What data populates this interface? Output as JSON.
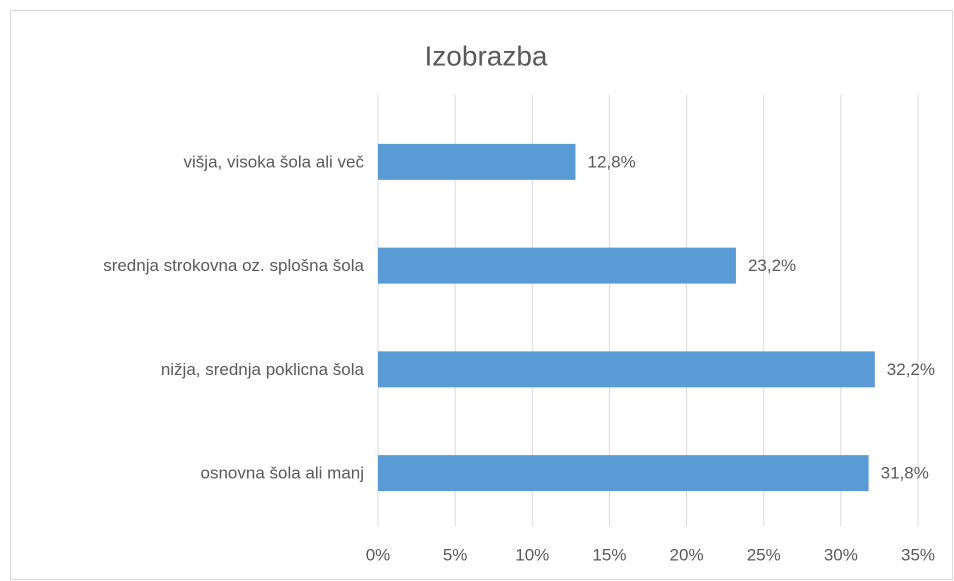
{
  "chart_data": {
    "type": "hbar",
    "title": "Izobrazba",
    "categories": [
      "višja, visoka šola ali več",
      "srednja strokovna oz. splošna šola",
      "nižja, srednja poklicna šola",
      "osnovna šola ali manj"
    ],
    "values": [
      12.8,
      23.2,
      32.2,
      31.8
    ],
    "value_labels": [
      "12,8%",
      "23,2%",
      "32,2%",
      "31,8%"
    ],
    "color": "#5b9bd5",
    "xlim": [
      0,
      35
    ],
    "xticks": [
      {
        "value": 0,
        "label": "0%"
      },
      {
        "value": 5,
        "label": "5%"
      },
      {
        "value": 10,
        "label": "10%"
      },
      {
        "value": 15,
        "label": "15%"
      },
      {
        "value": 20,
        "label": "20%"
      },
      {
        "value": 25,
        "label": "25%"
      },
      {
        "value": 30,
        "label": "30%"
      },
      {
        "value": 35,
        "label": "35%"
      }
    ],
    "grid": true
  }
}
